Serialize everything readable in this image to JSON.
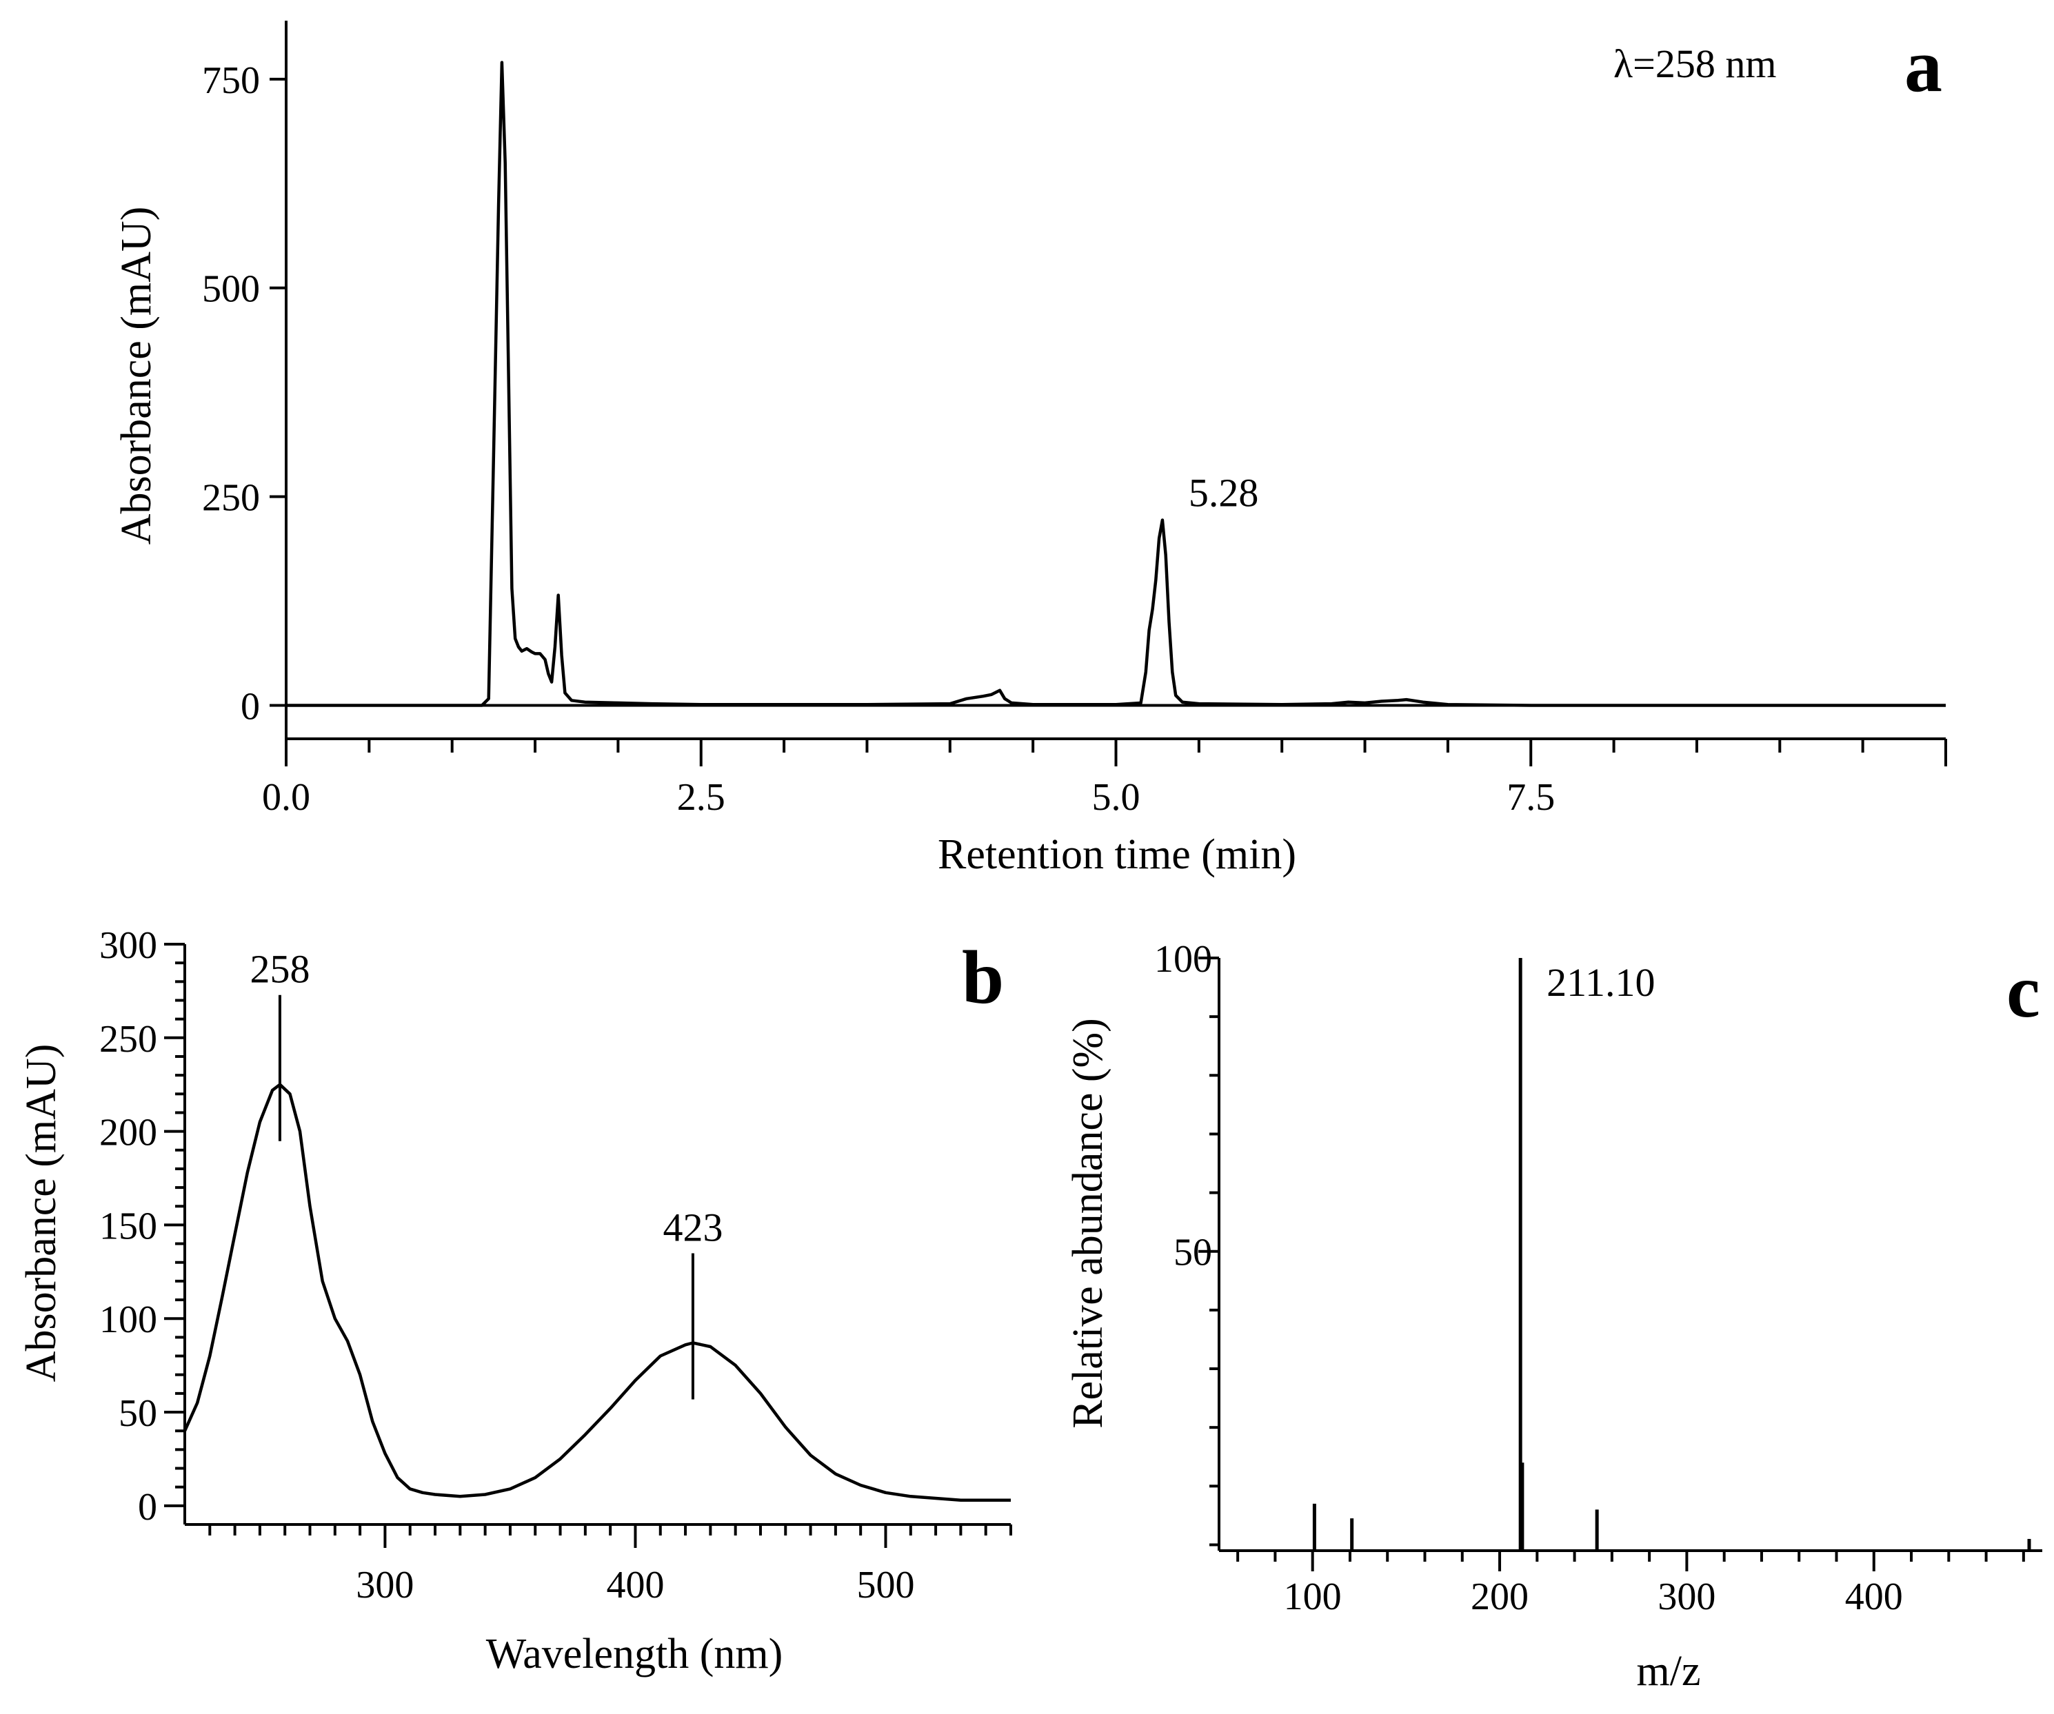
{
  "chart_data": [
    {
      "panel": "a",
      "type": "line",
      "title": "",
      "xlabel": "Retention time (min)",
      "ylabel": "Absorbance (mAU)",
      "xlim": [
        0,
        10
      ],
      "ylim": [
        -40,
        820
      ],
      "xticks": [
        0,
        2.5,
        5,
        7.5
      ],
      "xtick_labels": [
        "0.0",
        "2.5",
        "5.0",
        "7.5"
      ],
      "yticks": [
        0,
        250,
        500,
        750
      ],
      "ytick_labels": [
        "0",
        "250",
        "500",
        "750"
      ],
      "x_minor_step": 0.5,
      "wavelength_label": "λ=258 nm",
      "annotations": [
        {
          "x": 5.28,
          "y": 222,
          "text": "5.28"
        }
      ],
      "series": [
        {
          "name": "chromatogram",
          "points": [
            [
              0,
              0
            ],
            [
              1.18,
              0
            ],
            [
              1.22,
              8
            ],
            [
              1.25,
              300
            ],
            [
              1.28,
              600
            ],
            [
              1.3,
              770
            ],
            [
              1.32,
              650
            ],
            [
              1.34,
              400
            ],
            [
              1.36,
              140
            ],
            [
              1.38,
              80
            ],
            [
              1.4,
              70
            ],
            [
              1.42,
              65
            ],
            [
              1.45,
              68
            ],
            [
              1.48,
              64
            ],
            [
              1.5,
              62
            ],
            [
              1.53,
              62
            ],
            [
              1.56,
              55
            ],
            [
              1.58,
              38
            ],
            [
              1.6,
              28
            ],
            [
              1.62,
              70
            ],
            [
              1.64,
              132
            ],
            [
              1.66,
              60
            ],
            [
              1.68,
              15
            ],
            [
              1.72,
              6
            ],
            [
              1.8,
              4
            ],
            [
              2.0,
              3
            ],
            [
              2.2,
              2
            ],
            [
              2.5,
              1
            ],
            [
              3.0,
              1
            ],
            [
              3.5,
              1
            ],
            [
              4.0,
              2
            ],
            [
              4.1,
              8
            ],
            [
              4.2,
              11
            ],
            [
              4.25,
              13
            ],
            [
              4.3,
              18
            ],
            [
              4.33,
              8
            ],
            [
              4.37,
              3
            ],
            [
              4.5,
              1
            ],
            [
              5.0,
              1
            ],
            [
              5.15,
              3
            ],
            [
              5.18,
              40
            ],
            [
              5.2,
              90
            ],
            [
              5.22,
              115
            ],
            [
              5.24,
              150
            ],
            [
              5.26,
              200
            ],
            [
              5.28,
              222
            ],
            [
              5.3,
              180
            ],
            [
              5.32,
              100
            ],
            [
              5.34,
              40
            ],
            [
              5.36,
              12
            ],
            [
              5.4,
              4
            ],
            [
              5.5,
              2
            ],
            [
              6.0,
              1
            ],
            [
              6.3,
              2
            ],
            [
              6.4,
              4
            ],
            [
              6.5,
              3
            ],
            [
              6.6,
              5
            ],
            [
              6.7,
              6
            ],
            [
              6.75,
              7
            ],
            [
              6.85,
              4
            ],
            [
              7.0,
              1
            ],
            [
              7.5,
              0
            ],
            [
              10,
              0
            ]
          ]
        }
      ]
    },
    {
      "panel": "b",
      "type": "line",
      "title": "",
      "xlabel": "Wavelength (nm)",
      "ylabel": "Absorbance (mAU)",
      "xlim": [
        220,
        550
      ],
      "ylim": [
        -10,
        300
      ],
      "xticks": [
        300,
        400,
        500
      ],
      "xtick_labels": [
        "300",
        "400",
        "500"
      ],
      "yticks": [
        0,
        50,
        100,
        150,
        200,
        250,
        300
      ],
      "ytick_labels": [
        "0",
        "50",
        "100",
        "150",
        "200",
        "250",
        "300"
      ],
      "annotations": [
        {
          "x": 258,
          "y": 225,
          "text": "258"
        },
        {
          "x": 423,
          "y": 87,
          "text": "423"
        }
      ],
      "series": [
        {
          "name": "UV-Vis spectrum",
          "points": [
            [
              220,
              40
            ],
            [
              225,
              55
            ],
            [
              230,
              80
            ],
            [
              235,
              112
            ],
            [
              240,
              145
            ],
            [
              245,
              178
            ],
            [
              250,
              205
            ],
            [
              255,
              222
            ],
            [
              258,
              225
            ],
            [
              262,
              220
            ],
            [
              266,
              200
            ],
            [
              270,
              160
            ],
            [
              275,
              120
            ],
            [
              280,
              100
            ],
            [
              285,
              88
            ],
            [
              290,
              70
            ],
            [
              295,
              45
            ],
            [
              300,
              28
            ],
            [
              305,
              15
            ],
            [
              310,
              9
            ],
            [
              315,
              7
            ],
            [
              320,
              6
            ],
            [
              330,
              5
            ],
            [
              340,
              6
            ],
            [
              350,
              9
            ],
            [
              360,
              15
            ],
            [
              370,
              25
            ],
            [
              380,
              38
            ],
            [
              390,
              52
            ],
            [
              400,
              67
            ],
            [
              410,
              80
            ],
            [
              420,
              86
            ],
            [
              423,
              87
            ],
            [
              430,
              85
            ],
            [
              440,
              75
            ],
            [
              450,
              60
            ],
            [
              460,
              42
            ],
            [
              470,
              27
            ],
            [
              480,
              17
            ],
            [
              490,
              11
            ],
            [
              500,
              7
            ],
            [
              510,
              5
            ],
            [
              520,
              4
            ],
            [
              530,
              3
            ],
            [
              550,
              3
            ]
          ]
        }
      ]
    },
    {
      "panel": "c",
      "type": "bar",
      "title": "",
      "xlabel": "m/z",
      "ylabel": "Relative abundance (%)",
      "xlim": [
        50,
        490
      ],
      "ylim": [
        -1,
        100
      ],
      "xticks": [
        100,
        200,
        300,
        400
      ],
      "xtick_labels": [
        "100",
        "200",
        "300",
        "400"
      ],
      "yticks": [
        50,
        100
      ],
      "ytick_labels": [
        "50",
        "100"
      ],
      "annotations": [
        {
          "x": 211.1,
          "y": 100,
          "text": "211.10"
        }
      ],
      "series": [
        {
          "name": "mass spectrum",
          "x": [
            101,
            121,
            211.1,
            212.1,
            252,
            483
          ],
          "values": [
            7,
            4.5,
            100,
            14,
            6,
            1
          ]
        }
      ]
    }
  ],
  "panel_labels": {
    "a": "a",
    "b": "b",
    "c": "c"
  }
}
